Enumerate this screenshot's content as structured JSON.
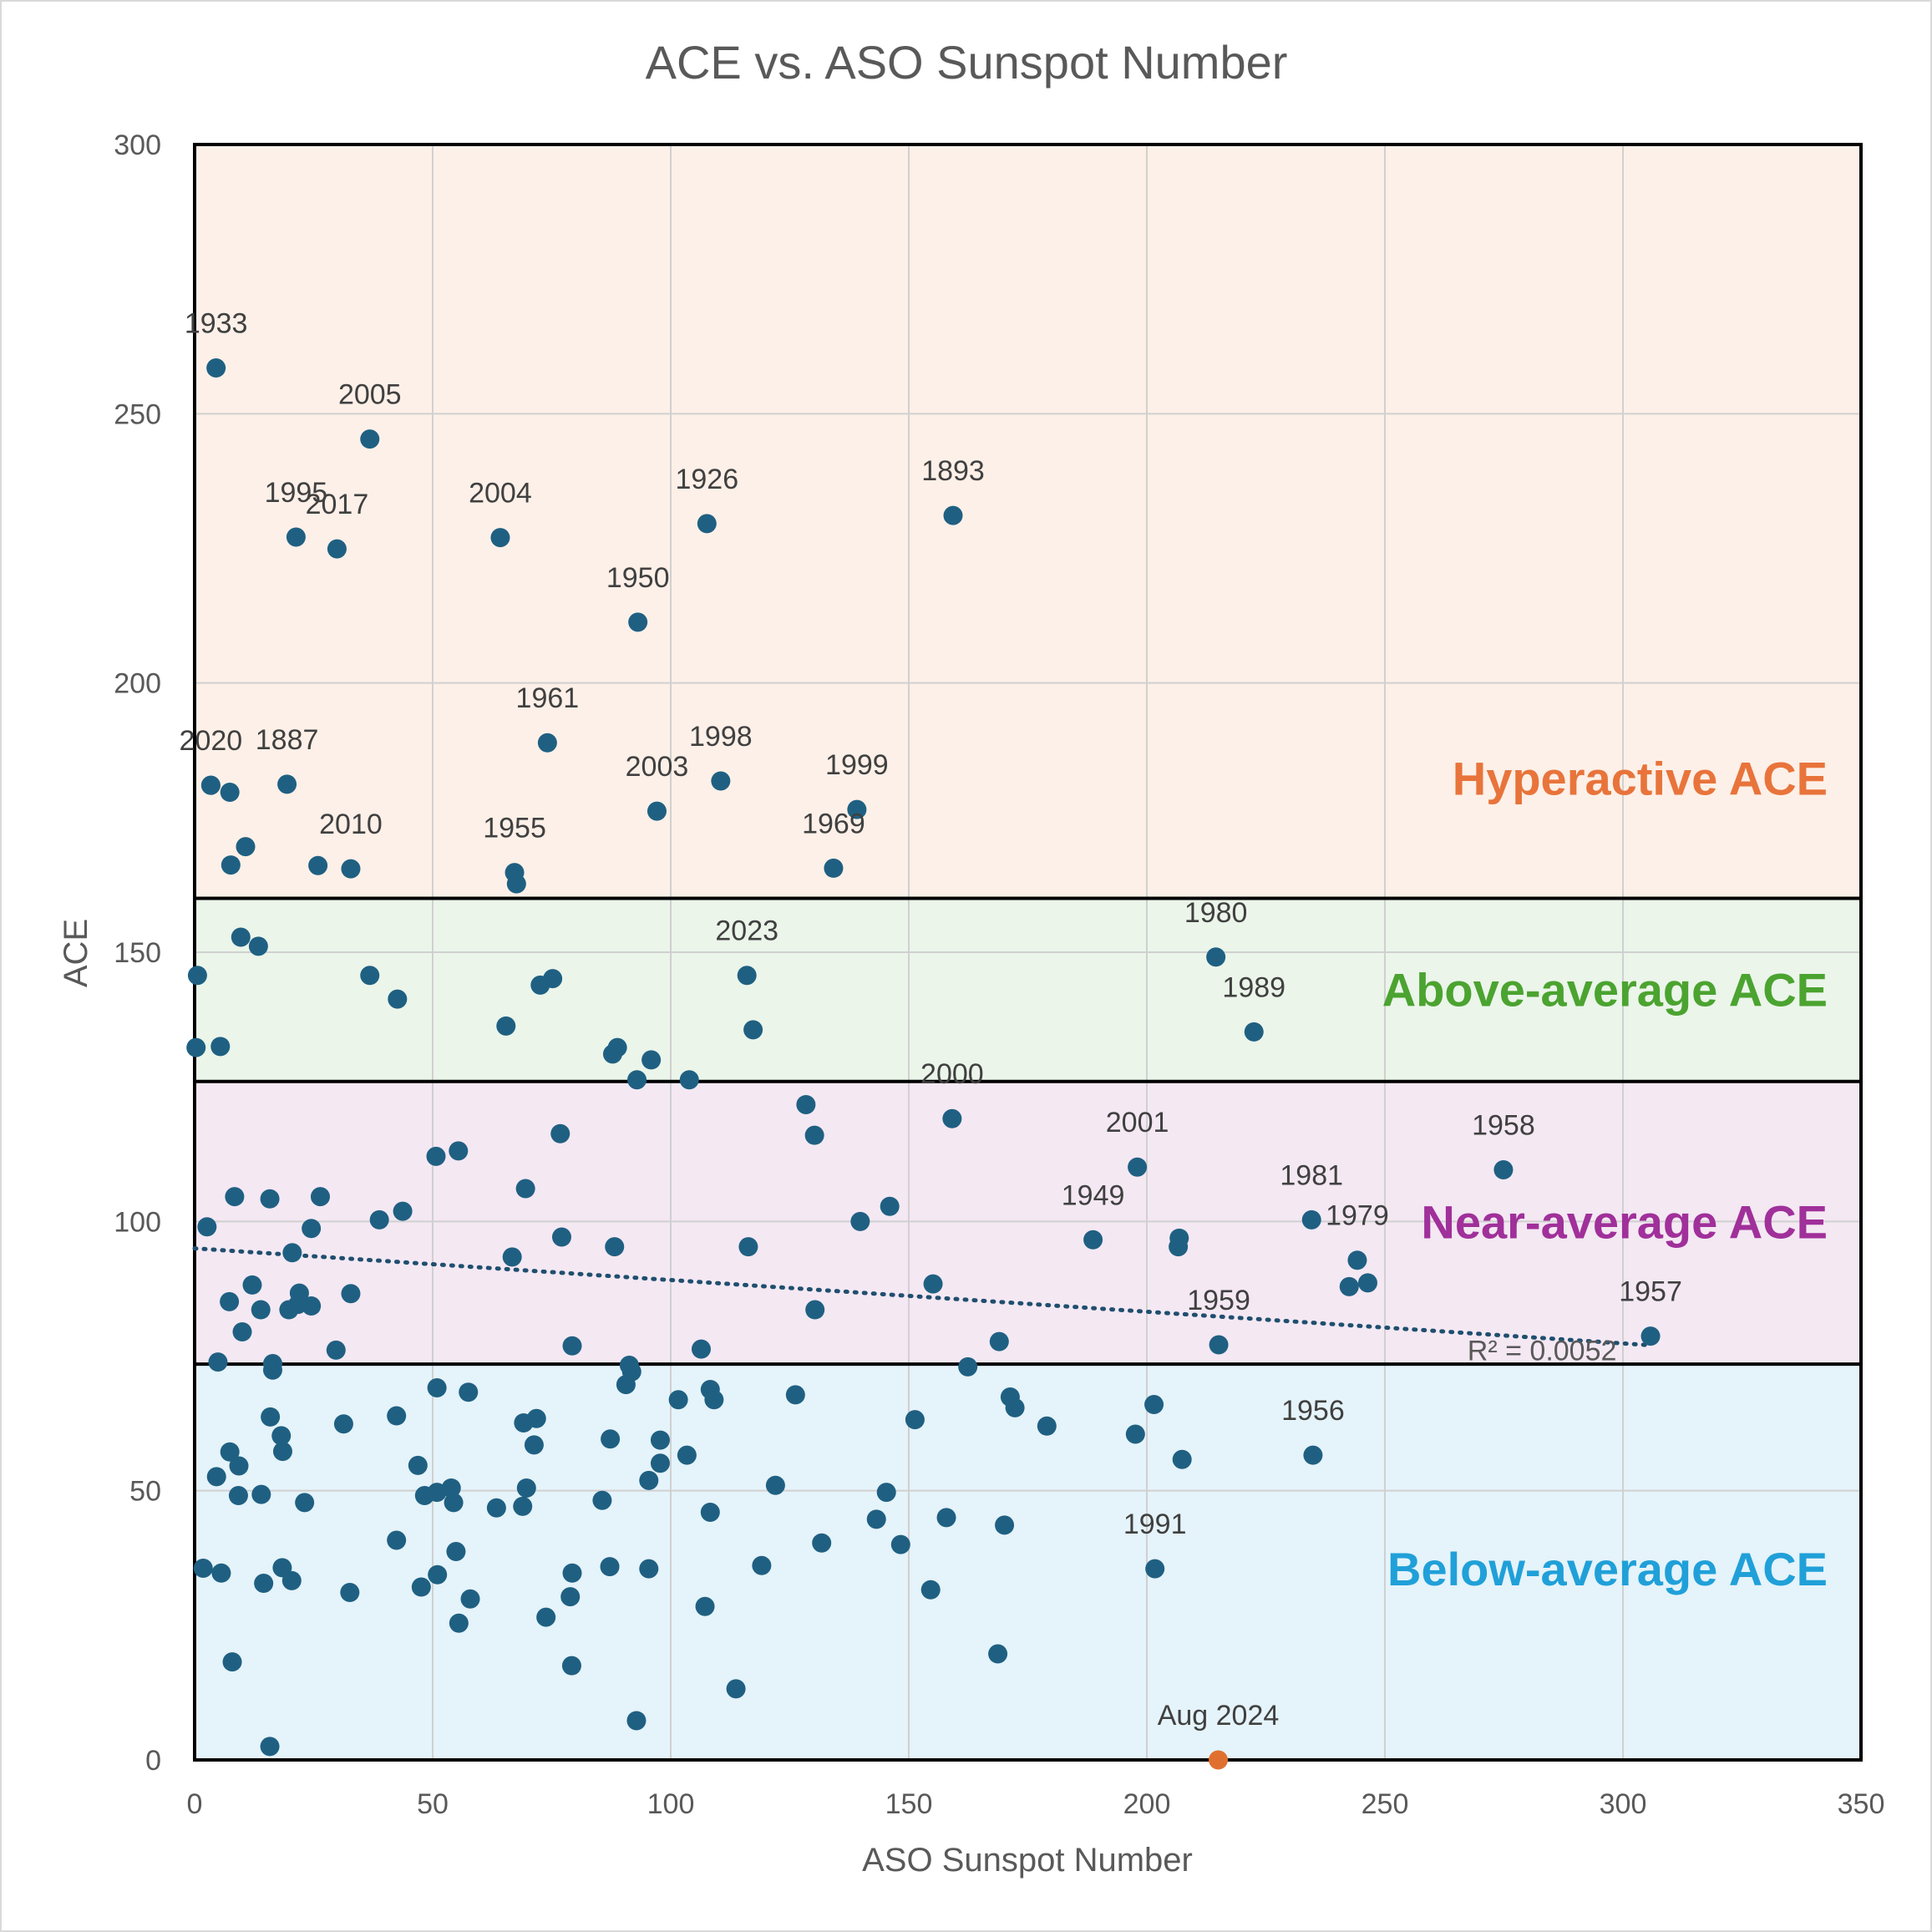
{
  "chart_data": {
    "type": "scatter",
    "title": "ACE vs. ASO Sunspot Number",
    "xlabel": "ASO Sunspot Number",
    "ylabel": "ACE",
    "xlim": [
      0,
      350
    ],
    "ylim": [
      0,
      300
    ],
    "xticks": [
      0,
      50,
      100,
      150,
      200,
      250,
      300,
      350
    ],
    "yticks": [
      0,
      50,
      100,
      150,
      200,
      250,
      300
    ],
    "grid": true,
    "colors": {
      "points": "#1f6082",
      "highlight": "#e07030",
      "hyperactive_text": "#e8743b",
      "above_text": "#4ba330",
      "near_text": "#a0309a",
      "below_text": "#20a0d8"
    },
    "bands": [
      {
        "label": "Hyperactive ACE",
        "from": 160,
        "to": 300,
        "color": "#fdf0e8"
      },
      {
        "label": "Above-average ACE",
        "from": 126,
        "to": 160,
        "color": "#ebf5ea"
      },
      {
        "label": "Near-average ACE",
        "from": 73.5,
        "to": 126,
        "color": "#f4e8f3"
      },
      {
        "label": "Below-average ACE",
        "from": 0,
        "to": 73.5,
        "color": "#e5f3fa"
      }
    ],
    "trendline": {
      "style": "dotted",
      "x": [
        0,
        306
      ],
      "y": [
        95,
        77
      ],
      "label": "R² = 0.0052"
    },
    "highlight_point": {
      "label": "Aug 2024",
      "x": 215,
      "y": 0
    },
    "labeled_points": [
      {
        "label": "1933",
        "x": 4.5,
        "y": 258.5
      },
      {
        "label": "2005",
        "x": 36.8,
        "y": 245.3
      },
      {
        "label": "1995",
        "x": 21.3,
        "y": 227.1
      },
      {
        "label": "2017",
        "x": 29.9,
        "y": 224.9
      },
      {
        "label": "2004",
        "x": 64.2,
        "y": 227
      },
      {
        "label": "1926",
        "x": 107.6,
        "y": 229.6
      },
      {
        "label": "1893",
        "x": 159.3,
        "y": 231.1
      },
      {
        "label": "1950",
        "x": 93.1,
        "y": 211.3
      },
      {
        "label": "1961",
        "x": 74.1,
        "y": 188.9
      },
      {
        "label": "2020",
        "x": 3.4,
        "y": 181
      },
      {
        "label": "1887",
        "x": 19.4,
        "y": 181.2
      },
      {
        "label": "1998",
        "x": 110.5,
        "y": 181.8
      },
      {
        "label": "2003",
        "x": 97.1,
        "y": 176.2
      },
      {
        "label": "1999",
        "x": 139.1,
        "y": 176.5
      },
      {
        "label": "2010",
        "x": 32.8,
        "y": 165.5
      },
      {
        "label": "1955",
        "x": 67.2,
        "y": 164.8
      },
      {
        "label": "1969",
        "x": 134.2,
        "y": 165.6
      },
      {
        "label": "2023",
        "x": 116,
        "y": 145.7
      },
      {
        "label": "1980",
        "x": 214.5,
        "y": 149.1
      },
      {
        "label": "1989",
        "x": 222.5,
        "y": 135.2
      },
      {
        "label": "2000",
        "x": 159.1,
        "y": 119.1
      },
      {
        "label": "2001",
        "x": 198,
        "y": 110.1
      },
      {
        "label": "1958",
        "x": 274.9,
        "y": 109.6
      },
      {
        "label": "1949",
        "x": 188.7,
        "y": 96.6
      },
      {
        "label": "1981",
        "x": 234.6,
        "y": 100.3
      },
      {
        "label": "1979",
        "x": 244.2,
        "y": 92.8
      },
      {
        "label": "1959",
        "x": 215.1,
        "y": 77.1
      },
      {
        "label": "1957",
        "x": 305.8,
        "y": 78.7
      },
      {
        "label": "1956",
        "x": 234.9,
        "y": 56.6
      },
      {
        "label": "1991",
        "x": 201.7,
        "y": 35.5
      }
    ],
    "other_points": [
      [
        3.4,
        181
      ],
      [
        7.4,
        179.7
      ],
      [
        10.7,
        169.6
      ],
      [
        7.6,
        166.2
      ],
      [
        25.9,
        166.1
      ],
      [
        67.6,
        162.7
      ],
      [
        0.6,
        145.7
      ],
      [
        9.7,
        152.8
      ],
      [
        13.4,
        151.1
      ],
      [
        36.8,
        145.7
      ],
      [
        42.6,
        141.3
      ],
      [
        72.6,
        143.9
      ],
      [
        75.2,
        145.1
      ],
      [
        65.4,
        136.3
      ],
      [
        88.8,
        132.3
      ],
      [
        87.8,
        131.1
      ],
      [
        95.9,
        130
      ],
      [
        92.9,
        126.3
      ],
      [
        103.9,
        126.3
      ],
      [
        117.3,
        135.6
      ],
      [
        5.4,
        132.5
      ],
      [
        0.3,
        132.3
      ],
      [
        128.4,
        121.7
      ],
      [
        130.2,
        116
      ],
      [
        76.8,
        116.3
      ],
      [
        55.4,
        113.1
      ],
      [
        50.7,
        112.1
      ],
      [
        69.5,
        106.1
      ],
      [
        8.4,
        104.6
      ],
      [
        15.8,
        104.2
      ],
      [
        26.4,
        104.6
      ],
      [
        43.7,
        101.9
      ],
      [
        38.8,
        100.3
      ],
      [
        2.6,
        99
      ],
      [
        24.5,
        98.7
      ],
      [
        77.1,
        97.1
      ],
      [
        88.2,
        95.3
      ],
      [
        116.3,
        95.3
      ],
      [
        139.8,
        100
      ],
      [
        146,
        102.8
      ],
      [
        206.8,
        96.9
      ],
      [
        206.6,
        95.3
      ],
      [
        20.5,
        94.2
      ],
      [
        66.7,
        93.4
      ],
      [
        12.1,
        88.2
      ],
      [
        22,
        86.7
      ],
      [
        32.8,
        86.6
      ],
      [
        155.1,
        88.4
      ],
      [
        242.5,
        87.9
      ],
      [
        246.4,
        88.6
      ],
      [
        7.3,
        85.1
      ],
      [
        13.9,
        83.6
      ],
      [
        21.7,
        84.6
      ],
      [
        24.5,
        84.3
      ],
      [
        19.8,
        83.6
      ],
      [
        130.3,
        83.6
      ],
      [
        10,
        79.5
      ],
      [
        79.3,
        76.9
      ],
      [
        29.7,
        76.1
      ],
      [
        106.4,
        76.3
      ],
      [
        169,
        77.7
      ],
      [
        4.9,
        73.9
      ],
      [
        16.4,
        73.6
      ],
      [
        16.4,
        72.4
      ],
      [
        91.3,
        73.3
      ],
      [
        91.8,
        72.1
      ],
      [
        162.4,
        73
      ],
      [
        50.9,
        69.1
      ],
      [
        57.5,
        68.3
      ],
      [
        108.3,
        68.8
      ],
      [
        109.1,
        66.9
      ],
      [
        101.6,
        66.9
      ],
      [
        126.2,
        67.8
      ],
      [
        171.3,
        67.4
      ],
      [
        172.3,
        65.4
      ],
      [
        201.5,
        66
      ],
      [
        15.9,
        63.7
      ],
      [
        42.4,
        63.9
      ],
      [
        31.3,
        62.4
      ],
      [
        69.1,
        62.6
      ],
      [
        71.8,
        63.4
      ],
      [
        151.3,
        63.2
      ],
      [
        179,
        62
      ],
      [
        90.6,
        69.7
      ],
      [
        18.2,
        60.2
      ],
      [
        71.3,
        58.5
      ],
      [
        87.3,
        59.6
      ],
      [
        97.8,
        59.4
      ],
      [
        7.4,
        57.2
      ],
      [
        18.5,
        57.3
      ],
      [
        197.6,
        60.5
      ],
      [
        207.4,
        55.8
      ],
      [
        103.4,
        56.6
      ],
      [
        97.8,
        55.1
      ],
      [
        46.9,
        54.7
      ],
      [
        9.3,
        54.6
      ],
      [
        4.6,
        52.6
      ],
      [
        95.4,
        51.9
      ],
      [
        122,
        51
      ],
      [
        53.9,
        50.5
      ],
      [
        69.7,
        50.5
      ],
      [
        14,
        49.3
      ],
      [
        9.2,
        49.1
      ],
      [
        48.3,
        49.1
      ],
      [
        50.9,
        49.7
      ],
      [
        145.3,
        49.7
      ],
      [
        23.1,
        47.8
      ],
      [
        54.4,
        47.8
      ],
      [
        85.6,
        48.2
      ],
      [
        63.4,
        46.8
      ],
      [
        68.9,
        47.1
      ],
      [
        108.3,
        46
      ],
      [
        143.2,
        44.7
      ],
      [
        157.9,
        45
      ],
      [
        148.3,
        40
      ],
      [
        131.7,
        40.3
      ],
      [
        170.1,
        43.6
      ],
      [
        42.4,
        40.8
      ],
      [
        54.9,
        38.7
      ],
      [
        1.8,
        35.6
      ],
      [
        5.6,
        34.7
      ],
      [
        18.4,
        35.7
      ],
      [
        79.3,
        34.7
      ],
      [
        87.2,
        35.9
      ],
      [
        95.4,
        35.5
      ],
      [
        119.1,
        36.1
      ],
      [
        14.5,
        32.8
      ],
      [
        20.4,
        33.3
      ],
      [
        51,
        34.4
      ],
      [
        47.6,
        32.1
      ],
      [
        32.6,
        31.1
      ],
      [
        57.9,
        29.9
      ],
      [
        78.9,
        30.3
      ],
      [
        107.2,
        28.5
      ],
      [
        154.6,
        31.6
      ],
      [
        73.8,
        26.5
      ],
      [
        55.5,
        25.4
      ],
      [
        168.7,
        19.7
      ],
      [
        7.9,
        18.2
      ],
      [
        79.2,
        17.5
      ],
      [
        113.7,
        13.2
      ],
      [
        92.8,
        7.3
      ],
      [
        15.8,
        2.5
      ]
    ]
  }
}
